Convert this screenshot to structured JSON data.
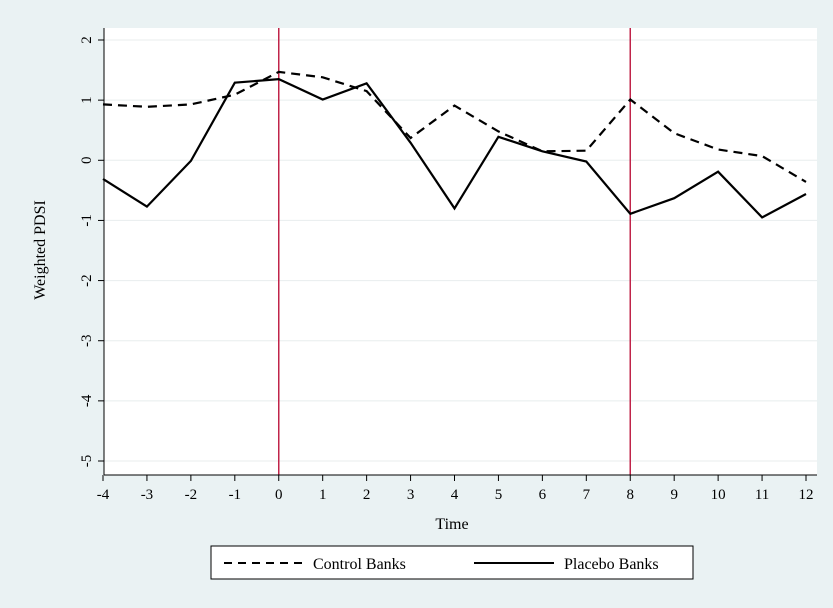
{
  "chart_data": {
    "type": "line",
    "title": "",
    "xlabel": "Time",
    "ylabel": "Weighted PDSI",
    "x": [
      -4,
      -3,
      -2,
      -1,
      0,
      1,
      2,
      3,
      4,
      5,
      6,
      7,
      8,
      9,
      10,
      11,
      12
    ],
    "xlim": [
      -4,
      12
    ],
    "ylim": [
      -5,
      2
    ],
    "xticks": [
      "-4",
      "-3",
      "-2",
      "-1",
      "0",
      "1",
      "2",
      "3",
      "4",
      "5",
      "6",
      "7",
      "8",
      "9",
      "10",
      "11",
      "12"
    ],
    "yticks": [
      "-5",
      "-4",
      "-3",
      "-2",
      "-1",
      "0",
      "1",
      "2"
    ],
    "grid": "horizontal",
    "legend_position": "bottom",
    "reference_lines": {
      "x": [
        0,
        8
      ],
      "color": "#c0244a"
    },
    "series": [
      {
        "name": "Control Banks",
        "style": "dashed",
        "color": "#000000",
        "values": [
          0.93,
          0.89,
          0.93,
          1.09,
          1.47,
          1.38,
          1.15,
          0.37,
          0.91,
          0.48,
          0.15,
          0.16,
          1.01,
          0.45,
          0.18,
          0.07,
          -0.36
        ]
      },
      {
        "name": "Placebo Banks",
        "style": "solid",
        "color": "#000000",
        "values": [
          -0.31,
          -0.77,
          -0.01,
          1.29,
          1.35,
          1.01,
          1.28,
          0.29,
          -0.8,
          0.39,
          0.15,
          -0.02,
          -0.89,
          -0.63,
          -0.19,
          -0.95,
          -0.56
        ]
      }
    ]
  }
}
